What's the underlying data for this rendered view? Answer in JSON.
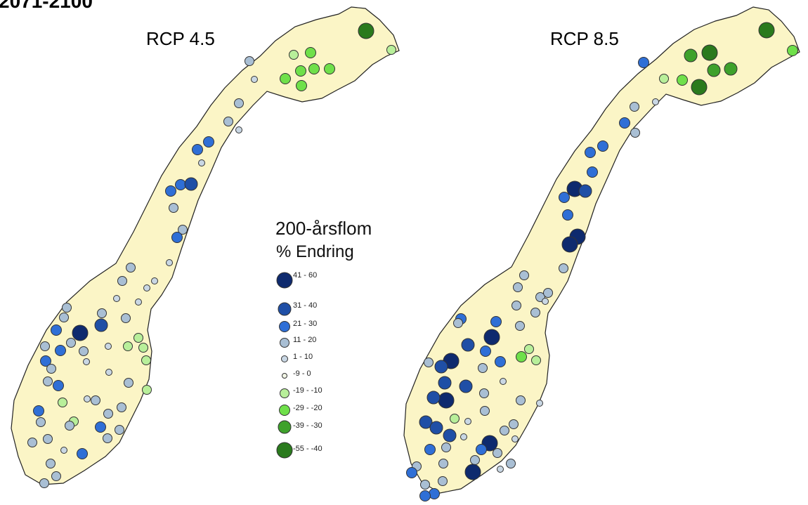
{
  "page": {
    "title": "2071-2100"
  },
  "maps": [
    {
      "id": "rcp45",
      "title": "RCP 4.5"
    },
    {
      "id": "rcp85",
      "title": "RCP 8.5"
    }
  ],
  "legend": {
    "title": "200-årsflom",
    "subtitle": "% Endring",
    "classes": [
      {
        "label": "41 - 60",
        "color": "#0e2a6e",
        "size": "largest"
      },
      {
        "label": "31 - 40",
        "color": "#1f4fa6",
        "size": "large"
      },
      {
        "label": "21 - 30",
        "color": "#2f6fd6",
        "size": "medium"
      },
      {
        "label": "11 - 20",
        "color": "#a9bfd4",
        "size": "medium-small"
      },
      {
        "label": "1 - 10",
        "color": "#c9d7e4",
        "size": "small"
      },
      {
        "label": "-9 - 0",
        "color": "#f2f6e6",
        "size": "smallest"
      },
      {
        "label": "-19 - -10",
        "color": "#b8ef9a",
        "size": "medium-small"
      },
      {
        "label": "-29 - -20",
        "color": "#6fe04a",
        "size": "medium"
      },
      {
        "label": "-39 - -30",
        "color": "#3ea12b",
        "size": "large"
      },
      {
        "label": "-55 - -40",
        "color": "#2a7a1d",
        "size": "largest"
      }
    ]
  },
  "colors": {
    "land": "#fbf5c6",
    "outline": "#222222",
    "marker_stroke": "#333333"
  }
}
